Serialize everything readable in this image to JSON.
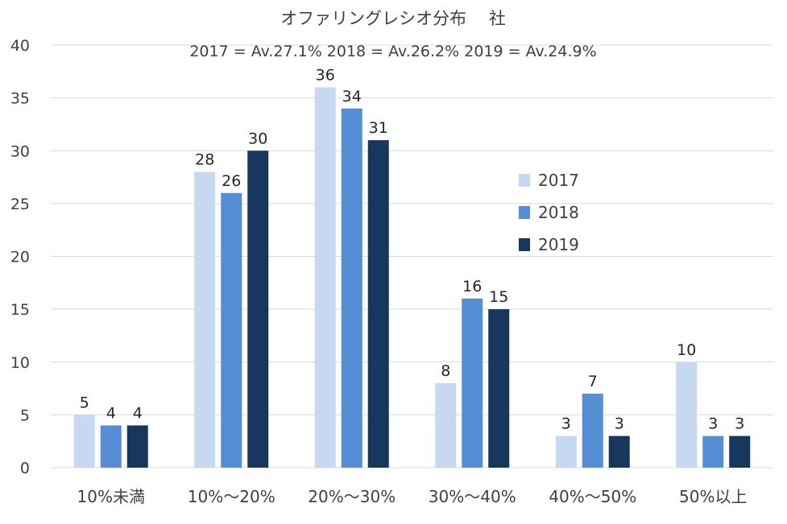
{
  "chart_data": {
    "type": "bar",
    "title": "オファリングレシオ分布　 社",
    "subtitle": "2017 = Av.27.1%   2018 = Av.26.2%   2019 = Av.24.9%",
    "categories": [
      "10%未満",
      "10%～20%",
      "20%～30%",
      "30%～40%",
      "40%～50%",
      "50%以上"
    ],
    "series": [
      {
        "name": "2017",
        "color": "#c6d9f0",
        "values": [
          5,
          28,
          36,
          8,
          3,
          10
        ]
      },
      {
        "name": "2018",
        "color": "#558ed5",
        "values": [
          4,
          26,
          34,
          16,
          7,
          3
        ]
      },
      {
        "name": "2019",
        "color": "#17375e",
        "values": [
          4,
          30,
          31,
          15,
          3,
          3
        ]
      }
    ],
    "ylim": [
      0,
      40
    ],
    "yticks": [
      "0",
      "5",
      "10",
      "15",
      "20",
      "25",
      "30",
      "35",
      "40"
    ],
    "xlabel": "",
    "ylabel": "",
    "grid": true,
    "legend_position": "right"
  }
}
